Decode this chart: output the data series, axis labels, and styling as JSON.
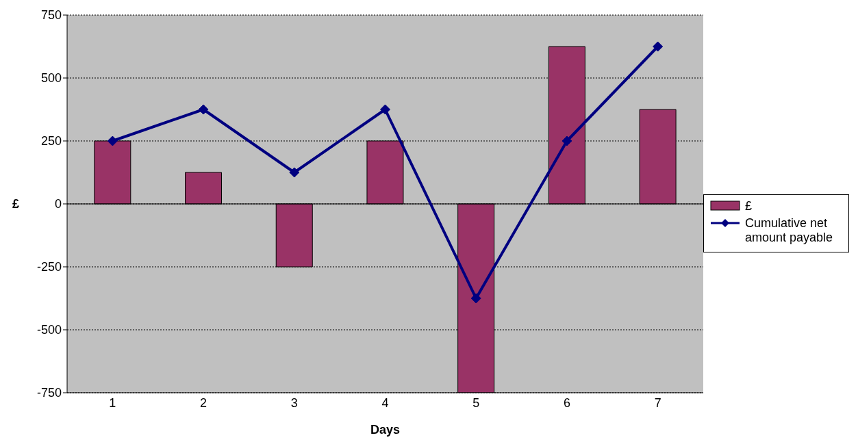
{
  "chart_data": {
    "type": "bar",
    "xlabel": "Days",
    "ylabel": "£",
    "categories": [
      "1",
      "2",
      "3",
      "4",
      "5",
      "6",
      "7"
    ],
    "series": [
      {
        "name": "£",
        "color": "#993366",
        "values": [
          250,
          125,
          -250,
          250,
          -750,
          625,
          375
        ]
      },
      {
        "name": "Cumulative net amount payable",
        "type": "line",
        "color": "#000080",
        "values": [
          250,
          375,
          125,
          375,
          -375,
          250,
          625
        ],
        "marker": "diamond"
      }
    ],
    "ylim": [
      -750,
      750
    ],
    "yticks": [
      -750,
      -500,
      -250,
      0,
      250,
      500,
      750
    ],
    "grid": "y",
    "legend": "right"
  }
}
